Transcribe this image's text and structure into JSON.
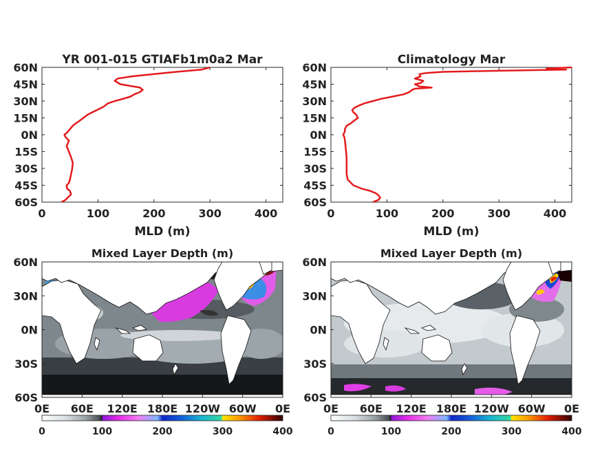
{
  "chart_data": [
    {
      "type": "line",
      "title": "YR 001-015 GTIAFb1m0a2 Mar",
      "xlabel": "MLD (m)",
      "ylabel": "",
      "xlim": [
        0,
        430
      ],
      "ylim": [
        -60,
        60
      ],
      "x_ticks": [
        "0",
        "100",
        "200",
        "300",
        "400"
      ],
      "y_ticks": [
        "60N",
        "45N",
        "30N",
        "15N",
        "0N",
        "15S",
        "30S",
        "45S",
        "60S"
      ],
      "series": [
        {
          "color": "#e41a1c",
          "lat": [
            60,
            58,
            56,
            54,
            52,
            50,
            48,
            45,
            42,
            40,
            38,
            36,
            34,
            32,
            30,
            28,
            25,
            22,
            20,
            18,
            15,
            12,
            10,
            8,
            5,
            2,
            0,
            -2,
            -5,
            -8,
            -10,
            -15,
            -20,
            -25,
            -30,
            -35,
            -40,
            -43,
            -45,
            -48,
            -50,
            -53,
            -55,
            -58,
            -60
          ],
          "mld": [
            300,
            285,
            240,
            200,
            160,
            135,
            130,
            140,
            175,
            180,
            175,
            165,
            158,
            145,
            130,
            118,
            110,
            98,
            90,
            82,
            74,
            66,
            60,
            55,
            50,
            45,
            40,
            42,
            48,
            46,
            44,
            48,
            52,
            55,
            54,
            52,
            50,
            48,
            44,
            45,
            50,
            52,
            48,
            42,
            35
          ]
        }
      ]
    },
    {
      "type": "line",
      "title": "Climatology Mar",
      "xlabel": "MLD (m)",
      "ylabel": "",
      "xlim": [
        0,
        430
      ],
      "ylim": [
        -60,
        60
      ],
      "x_ticks": [
        "0",
        "100",
        "200",
        "300",
        "400"
      ],
      "y_ticks": [
        "60N",
        "45N",
        "30N",
        "15N",
        "0N",
        "15S",
        "30S",
        "45S",
        "60S"
      ],
      "series": [
        {
          "color": "#e41a1c",
          "lat": [
            60,
            59,
            58,
            57,
            56,
            55,
            54,
            52,
            50,
            48,
            46,
            45,
            43,
            42,
            41,
            40,
            38,
            36,
            34,
            32,
            30,
            28,
            26,
            24,
            22,
            20,
            18,
            15,
            12,
            10,
            8,
            5,
            3,
            0,
            -2,
            -5,
            -10,
            -15,
            -20,
            -25,
            -30,
            -35,
            -40,
            -45,
            -48,
            -50,
            -52,
            -54,
            -56,
            -58,
            -60
          ],
          "mld": [
            430,
            385,
            420,
            300,
            200,
            170,
            158,
            160,
            150,
            165,
            160,
            150,
            158,
            180,
            150,
            145,
            140,
            130,
            110,
            90,
            75,
            60,
            50,
            42,
            38,
            40,
            45,
            48,
            40,
            35,
            28,
            25,
            25,
            22,
            24,
            25,
            26,
            27,
            28,
            28,
            28,
            28,
            30,
            40,
            55,
            70,
            80,
            85,
            88,
            85,
            75
          ]
        }
      ]
    },
    {
      "type": "heatmap",
      "title": "Mixed Layer Depth (m)",
      "x_ticks": [
        "0E",
        "60E",
        "120E",
        "180E",
        "120W",
        "60W",
        "0E"
      ],
      "y_ticks": [
        "60N",
        "30N",
        "0N",
        "30S",
        "60S"
      ],
      "colorbar_ticks": [
        "0",
        "100",
        "200",
        "300",
        "400"
      ],
      "colorbar_range": [
        0,
        400
      ]
    },
    {
      "type": "heatmap",
      "title": "Mixed Layer Depth (m)",
      "x_ticks": [
        "0E",
        "60E",
        "120E",
        "180E",
        "120W",
        "60W",
        "0E"
      ],
      "y_ticks": [
        "60N",
        "30N",
        "0N",
        "30S",
        "60S"
      ],
      "colorbar_ticks": [
        "0",
        "100",
        "200",
        "300",
        "400"
      ],
      "colorbar_range": [
        0,
        400
      ]
    }
  ]
}
